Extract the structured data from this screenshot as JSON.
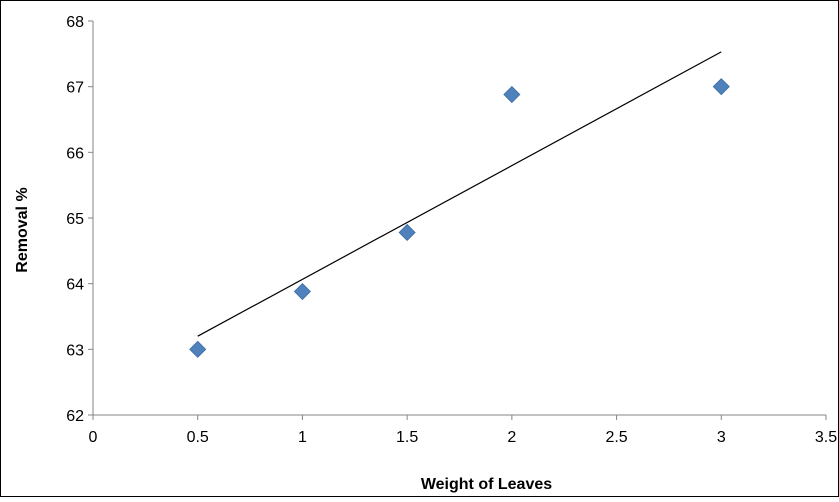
{
  "chart_data": {
    "type": "scatter",
    "xlabel": "Weight of Leaves",
    "ylabel": "Removal %",
    "xlim": [
      0,
      3.5
    ],
    "ylim": [
      62,
      68
    ],
    "x_ticks": [
      "0",
      "0.5",
      "1",
      "1.5",
      "2",
      "2.5",
      "3",
      "3.5"
    ],
    "y_ticks": [
      "62",
      "63",
      "64",
      "65",
      "66",
      "67",
      "68"
    ],
    "x_tick_values": [
      0,
      0.5,
      1,
      1.5,
      2,
      2.5,
      3,
      3.5
    ],
    "y_tick_values": [
      62,
      63,
      64,
      65,
      66,
      67,
      68
    ],
    "grid": false,
    "legend": false,
    "series": [
      {
        "x": [
          0.5,
          1,
          1.5,
          2,
          3
        ],
        "y": [
          63.0,
          63.88,
          64.78,
          66.88,
          67.0
        ],
        "marker": "diamond",
        "color": "#4f81bd"
      }
    ],
    "trendline": {
      "type": "linear",
      "x": [
        0.5,
        3
      ],
      "y": [
        63.2,
        67.53
      ],
      "color": "#000000"
    }
  }
}
